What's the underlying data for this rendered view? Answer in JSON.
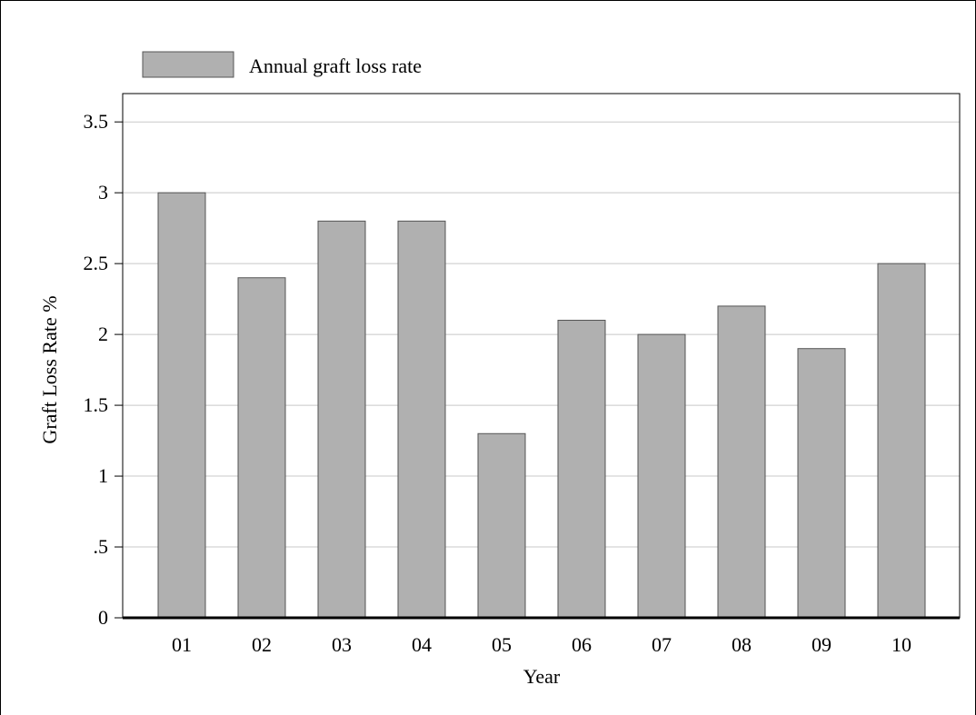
{
  "chart_data": {
    "type": "bar",
    "categories": [
      "01",
      "02",
      "03",
      "04",
      "05",
      "06",
      "07",
      "08",
      "09",
      "10"
    ],
    "series": [
      {
        "name": "Annual graft loss rate",
        "values": [
          3.0,
          2.4,
          2.8,
          2.8,
          1.3,
          2.1,
          2.0,
          2.2,
          1.9,
          2.5
        ]
      }
    ],
    "title": "",
    "xlabel": "Year",
    "ylabel": "Graft Loss Rate %",
    "ylim": [
      0,
      3.5
    ],
    "yticks": [
      {
        "value": 0,
        "label": "0"
      },
      {
        "value": 0.5,
        "label": ".5"
      },
      {
        "value": 1,
        "label": "1"
      },
      {
        "value": 1.5,
        "label": "1.5"
      },
      {
        "value": 2,
        "label": "2"
      },
      {
        "value": 2.5,
        "label": "2.5"
      },
      {
        "value": 3,
        "label": "3"
      },
      {
        "value": 3.5,
        "label": "3.5"
      }
    ],
    "grid": true,
    "legend_position": "top-left",
    "colors": {
      "bar_fill": "#b0b0b0",
      "bar_stroke": "#555555",
      "grid": "#c8c8c8",
      "axis": "#000000"
    }
  }
}
